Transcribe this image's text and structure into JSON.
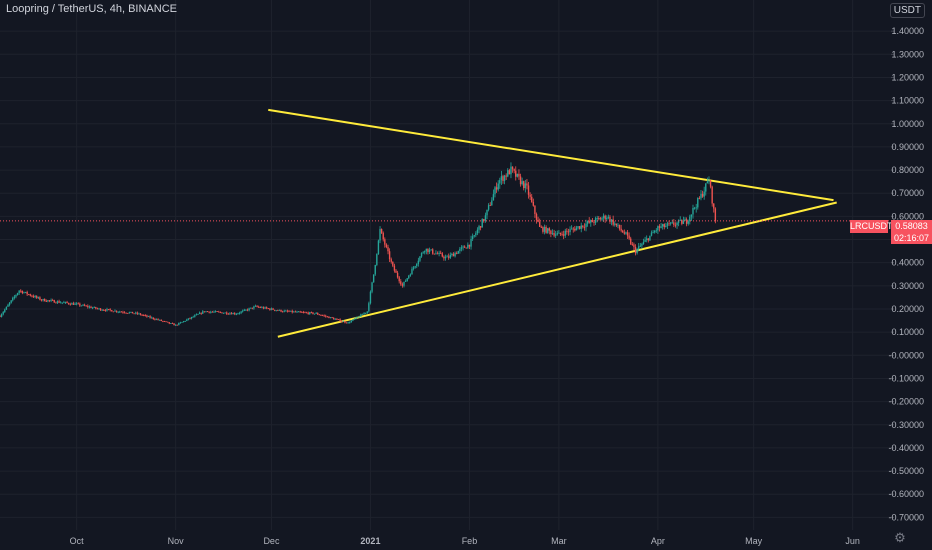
{
  "legend": {
    "title": "Loopring / TetherUS, 4h, BINANCE"
  },
  "currency_label": "USDT",
  "symbol_badge": "LRCUSDT",
  "price_badge": {
    "price": "0.58083",
    "countdown": "02:16:07"
  },
  "colors": {
    "background": "#131722",
    "grid": "#1e222d",
    "up_candle": "#26a69a",
    "down_candle": "#ef5350",
    "trendline": "#ffeb3b",
    "price_line": "#f7525f",
    "axis_text": "#b2b5be"
  },
  "chart_data": {
    "type": "candlestick",
    "title": "Loopring / TetherUS, 4h, BINANCE",
    "ylim": [
      -0.72,
      1.5
    ],
    "y_ticks": [
      "1.40000",
      "1.30000",
      "1.20000",
      "1.10000",
      "1.00000",
      "0.90000",
      "0.80000",
      "0.70000",
      "0.60000",
      "0.50000",
      "0.40000",
      "0.30000",
      "0.20000",
      "0.10000",
      "-0.00000",
      "-0.10000",
      "-0.20000",
      "-0.30000",
      "-0.40000",
      "-0.50000",
      "-0.60000",
      "-0.70000"
    ],
    "x_ticks": [
      {
        "label": "Oct",
        "date": "2020-10-01"
      },
      {
        "label": "Nov",
        "date": "2020-11-01"
      },
      {
        "label": "Dec",
        "date": "2020-12-01"
      },
      {
        "label": "2021",
        "date": "2021-01-01"
      },
      {
        "label": "Feb",
        "date": "2021-02-01"
      },
      {
        "label": "Mar",
        "date": "2021-03-01"
      },
      {
        "label": "Apr",
        "date": "2021-04-01"
      },
      {
        "label": "May",
        "date": "2021-05-01"
      },
      {
        "label": "Jun",
        "date": "2021-06-01"
      }
    ],
    "xlim": [
      "2020-09-07",
      "2021-06-13"
    ],
    "last_price": 0.58083,
    "price_path": [
      {
        "date": "2020-09-07",
        "value": 0.17
      },
      {
        "date": "2020-09-13",
        "value": 0.28
      },
      {
        "date": "2020-09-20",
        "value": 0.24
      },
      {
        "date": "2020-10-01",
        "value": 0.22
      },
      {
        "date": "2020-10-08",
        "value": 0.2
      },
      {
        "date": "2020-10-20",
        "value": 0.18
      },
      {
        "date": "2020-11-01",
        "value": 0.13
      },
      {
        "date": "2020-11-10",
        "value": 0.19
      },
      {
        "date": "2020-11-20",
        "value": 0.18
      },
      {
        "date": "2020-11-26",
        "value": 0.21
      },
      {
        "date": "2020-12-05",
        "value": 0.19
      },
      {
        "date": "2020-12-15",
        "value": 0.18
      },
      {
        "date": "2020-12-25",
        "value": 0.14
      },
      {
        "date": "2020-12-31",
        "value": 0.19
      },
      {
        "date": "2021-01-02",
        "value": 0.35
      },
      {
        "date": "2021-01-04",
        "value": 0.54
      },
      {
        "date": "2021-01-08",
        "value": 0.38
      },
      {
        "date": "2021-01-11",
        "value": 0.3
      },
      {
        "date": "2021-01-18",
        "value": 0.46
      },
      {
        "date": "2021-01-25",
        "value": 0.42
      },
      {
        "date": "2021-02-01",
        "value": 0.48
      },
      {
        "date": "2021-02-06",
        "value": 0.6
      },
      {
        "date": "2021-02-10",
        "value": 0.75
      },
      {
        "date": "2021-02-14",
        "value": 0.8
      },
      {
        "date": "2021-02-19",
        "value": 0.72
      },
      {
        "date": "2021-02-23",
        "value": 0.55
      },
      {
        "date": "2021-03-01",
        "value": 0.52
      },
      {
        "date": "2021-03-10",
        "value": 0.57
      },
      {
        "date": "2021-03-16",
        "value": 0.6
      },
      {
        "date": "2021-03-22",
        "value": 0.52
      },
      {
        "date": "2021-03-25",
        "value": 0.45
      },
      {
        "date": "2021-04-01",
        "value": 0.55
      },
      {
        "date": "2021-04-10",
        "value": 0.58
      },
      {
        "date": "2021-04-15",
        "value": 0.7
      },
      {
        "date": "2021-04-17",
        "value": 0.76
      },
      {
        "date": "2021-04-19",
        "value": 0.58
      }
    ],
    "trendlines": [
      {
        "name": "upper",
        "start": {
          "date": "2020-11-30",
          "value": 1.06
        },
        "end": {
          "date": "2021-05-26",
          "value": 0.67
        }
      },
      {
        "name": "lower",
        "start": {
          "date": "2020-12-03",
          "value": 0.08
        },
        "end": {
          "date": "2021-05-27",
          "value": 0.66
        }
      }
    ]
  }
}
